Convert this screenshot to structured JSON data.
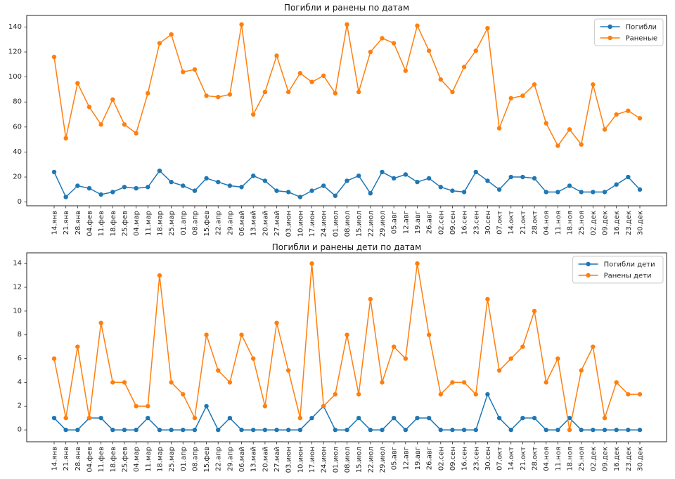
{
  "figure": {
    "background": "#ffffff"
  },
  "chart_data": [
    {
      "type": "line",
      "title": "Погибли и ранены по датам",
      "xlabel": "",
      "ylabel": "",
      "grid": false,
      "legend_position": "top-right",
      "yticks": [
        0,
        20,
        40,
        60,
        80,
        100,
        120,
        140
      ],
      "ylim": [
        -3,
        149.2
      ],
      "categories": [
        "14.янв",
        "21.янв",
        "28.янв",
        "04.фев",
        "11.фев",
        "18.фев",
        "25.фев",
        "04.мар",
        "11.мар",
        "18.мар",
        "25.мар",
        "01.апр",
        "08.апр",
        "15.фев",
        "22.апр",
        "29.апр",
        "06.май",
        "13.май",
        "20.май",
        "27.май",
        "03.июн",
        "10.июн",
        "17.июн",
        "24.июн",
        "01.июл",
        "08.июл",
        "15.июл",
        "22.июл",
        "29.июл",
        "05.авг",
        "12.авг",
        "19.авг",
        "26.авг",
        "02.сен",
        "09.сен",
        "16.сен",
        "23.сен",
        "30.сен",
        "07.окт",
        "14.окт",
        "21.окт",
        "28.окт",
        "04.ноя",
        "11.ноя",
        "18.ноя",
        "25.ноя",
        "02.дек",
        "09.дек",
        "16.дек",
        "23.дек",
        "30.дек"
      ],
      "series": [
        {
          "key": "pogibli",
          "name": "Погибли",
          "color": "#1f77b4",
          "values": [
            24,
            4,
            13,
            11,
            6,
            8,
            12,
            11,
            12,
            25,
            16,
            13,
            9,
            19,
            16,
            13,
            12,
            21,
            17,
            9,
            8,
            4,
            9,
            13,
            5,
            17,
            21,
            7,
            24,
            19,
            22,
            16,
            19,
            12,
            9,
            8,
            24,
            17,
            10,
            20,
            20,
            19,
            8,
            8,
            13,
            8,
            8,
            8,
            14,
            20,
            10
          ]
        },
        {
          "key": "ranenye",
          "name": "Раненые",
          "color": "#ff7f0e",
          "values": [
            116,
            51,
            95,
            76,
            62,
            82,
            62,
            55,
            87,
            127,
            134,
            104,
            106,
            85,
            84,
            86,
            142,
            70,
            88,
            117,
            88,
            103,
            96,
            101,
            87,
            142,
            88,
            120,
            131,
            127,
            105,
            141,
            121,
            98,
            88,
            108,
            121,
            139,
            59,
            83,
            85,
            94,
            63,
            45,
            58,
            46,
            94,
            58,
            70,
            73,
            67
          ]
        }
      ]
    },
    {
      "type": "line",
      "title": "Погибли и ранены дети по датам",
      "xlabel": "",
      "ylabel": "",
      "grid": false,
      "legend_position": "top-right",
      "yticks": [
        0,
        2,
        4,
        6,
        8,
        10,
        12,
        14
      ],
      "ylim": [
        -1,
        14.9
      ],
      "categories": [
        "14.янв",
        "21.янв",
        "28.янв",
        "04.фев",
        "11.фев",
        "18.фев",
        "25.фев",
        "04.мар",
        "11.мар",
        "18.мар",
        "25.мар",
        "01.апр",
        "08.апр",
        "15.фев",
        "22.апр",
        "29.апр",
        "06.май",
        "13.май",
        "20.май",
        "27.май",
        "03.июн",
        "10.июн",
        "17.июн",
        "24.июн",
        "01.июл",
        "08.июл",
        "15.июл",
        "22.июл",
        "29.июл",
        "05.авг",
        "12.авг",
        "19.авг",
        "26.авг",
        "02.сен",
        "09.сен",
        "16.сен",
        "23.сен",
        "30.сен",
        "07.окт",
        "14.окт",
        "21.окт",
        "28.окт",
        "04.ноя",
        "11.ноя",
        "18.ноя",
        "25.ноя",
        "02.дек",
        "09.дек",
        "16.дек",
        "23.дек",
        "30.дек"
      ],
      "series": [
        {
          "key": "pogibli-deti",
          "name": "Погибли дети",
          "color": "#1f77b4",
          "values": [
            1,
            0,
            0,
            1,
            1,
            0,
            0,
            0,
            1,
            0,
            0,
            0,
            0,
            2,
            0,
            1,
            0,
            0,
            0,
            0,
            0,
            0,
            1,
            2,
            0,
            0,
            1,
            0,
            0,
            1,
            0,
            1,
            1,
            0,
            0,
            0,
            0,
            3,
            1,
            0,
            1,
            1,
            0,
            0,
            1,
            0,
            0,
            0,
            0,
            0,
            0
          ]
        },
        {
          "key": "raneny-deti",
          "name": "Ранены дети",
          "color": "#ff7f0e",
          "values": [
            6,
            1,
            7,
            1,
            9,
            4,
            4,
            2,
            2,
            13,
            4,
            3,
            1,
            8,
            5,
            4,
            8,
            6,
            2,
            9,
            5,
            1,
            14,
            2,
            3,
            8,
            3,
            11,
            4,
            7,
            6,
            14,
            8,
            3,
            4,
            4,
            3,
            11,
            5,
            6,
            7,
            10,
            4,
            6,
            0,
            5,
            7,
            1,
            4,
            3,
            3
          ]
        }
      ]
    }
  ]
}
